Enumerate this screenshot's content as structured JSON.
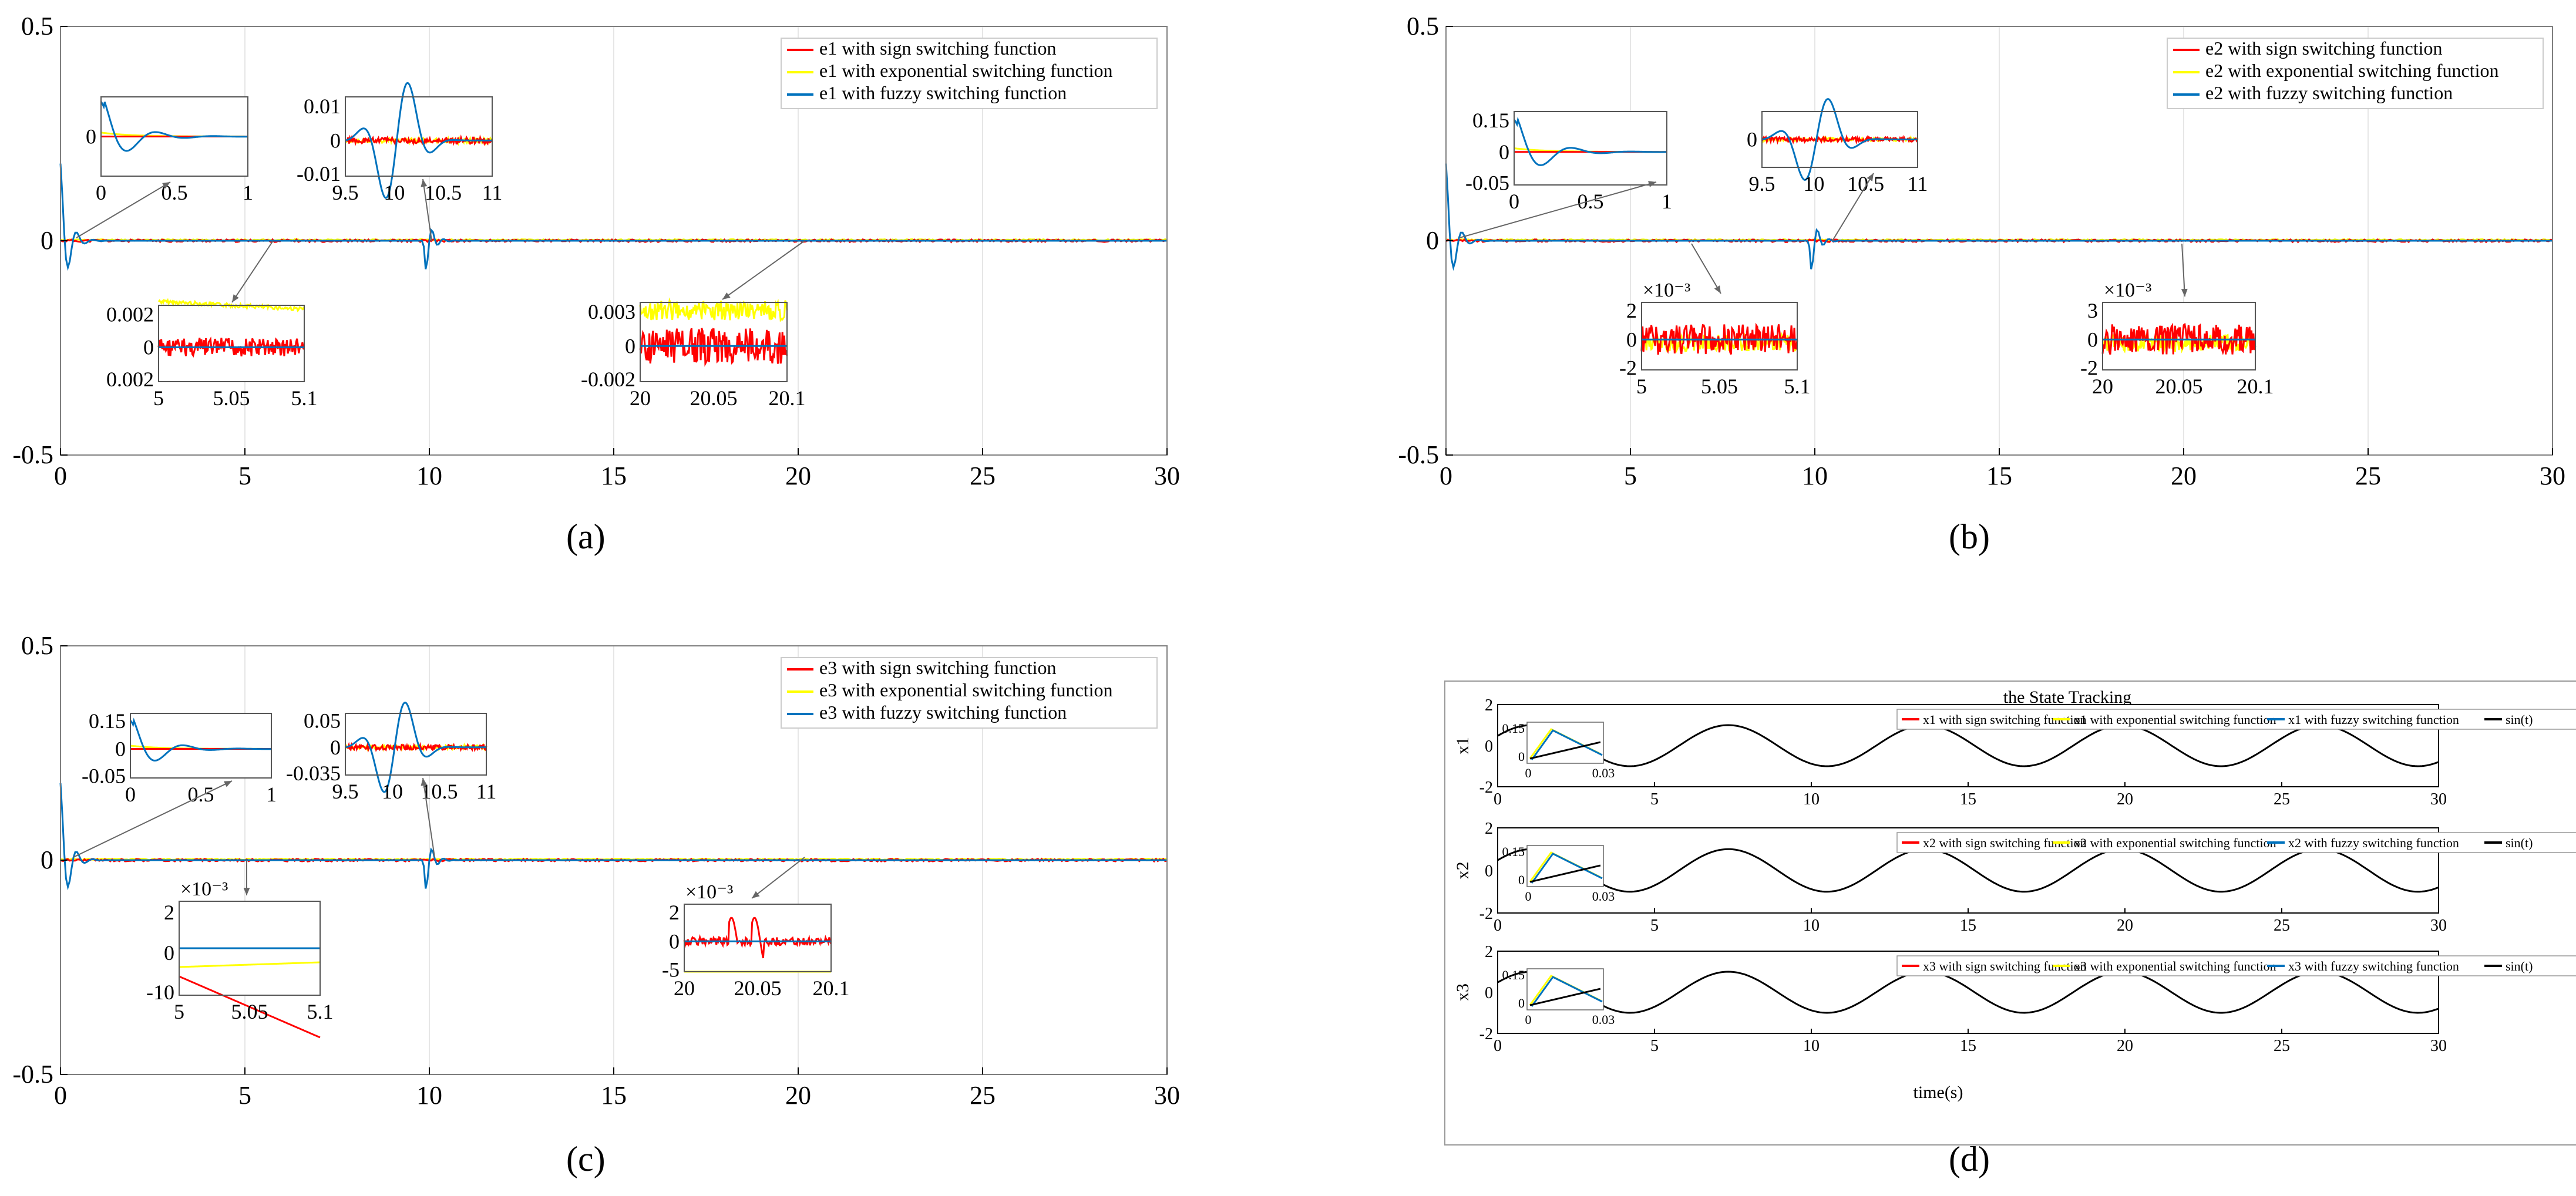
{
  "chart_data": [
    {
      "id": "a",
      "type": "line",
      "panel_label": "(a)",
      "title": "",
      "xlabel": "",
      "ylabel": "",
      "xlim": [
        0,
        30
      ],
      "ylim": [
        -0.5,
        0.5
      ],
      "xticks": [
        "0",
        "5",
        "10",
        "15",
        "20",
        "25",
        "30"
      ],
      "yticks": [
        "-0.5",
        "0",
        "0.5"
      ],
      "legend": [
        "e1 with sign switching function",
        "e1 with exponential switching function",
        "e1 with fuzzy switching function"
      ],
      "insets": [
        {
          "xticks": [
            "0",
            "0.5",
            "1"
          ],
          "yticks": [
            "0"
          ]
        },
        {
          "xticks": [
            "9.5",
            "10",
            "10.5",
            "11"
          ],
          "yticks": [
            "0.01",
            "0",
            "-0.01"
          ]
        },
        {
          "xticks": [
            "5",
            "5.05",
            "5.1"
          ],
          "yticks": [
            "0.002",
            "0",
            "0.002"
          ]
        },
        {
          "xticks": [
            "20",
            "20.05",
            "20.1"
          ],
          "yticks": [
            "0.003",
            "0",
            "-0.002"
          ]
        }
      ]
    },
    {
      "id": "b",
      "type": "line",
      "panel_label": "(b)",
      "title": "",
      "xlabel": "",
      "ylabel": "",
      "xlim": [
        0,
        30
      ],
      "ylim": [
        -0.5,
        0.5
      ],
      "xticks": [
        "0",
        "5",
        "10",
        "15",
        "20",
        "25",
        "30"
      ],
      "yticks": [
        "-0.5",
        "0",
        "0.5"
      ],
      "legend": [
        "e2 with sign switching function",
        "e2 with exponential switching function",
        "e2 with fuzzy switching function"
      ],
      "insets": [
        {
          "xticks": [
            "0",
            "0.5",
            "1"
          ],
          "yticks": [
            "0.15",
            "0",
            "-0.05"
          ]
        },
        {
          "xticks": [
            "9.5",
            "10",
            "10.5",
            "11"
          ],
          "yticks": [
            "0"
          ]
        },
        {
          "xticks": [
            "5",
            "5.05",
            "5.1"
          ],
          "yticks": [
            "2",
            "0",
            "-2"
          ],
          "exp": "×10⁻³"
        },
        {
          "xticks": [
            "20",
            "20.05",
            "20.1"
          ],
          "yticks": [
            "3",
            "0",
            "-2"
          ],
          "exp": "×10⁻³"
        }
      ]
    },
    {
      "id": "c",
      "type": "line",
      "panel_label": "(c)",
      "title": "",
      "xlabel": "",
      "ylabel": "",
      "xlim": [
        0,
        30
      ],
      "ylim": [
        -0.5,
        0.5
      ],
      "xticks": [
        "0",
        "5",
        "10",
        "15",
        "20",
        "25",
        "30"
      ],
      "yticks": [
        "-0.5",
        "0",
        "0.5"
      ],
      "legend": [
        "e3 with sign switching function",
        "e3 with exponential switching function",
        "e3 with fuzzy switching function"
      ],
      "insets": [
        {
          "xticks": [
            "0",
            "0.5",
            "1"
          ],
          "yticks": [
            "0.15",
            "0",
            "-0.05"
          ]
        },
        {
          "xticks": [
            "9.5",
            "10",
            "10.5",
            "11"
          ],
          "yticks": [
            "0.05",
            "0",
            "-0.035"
          ]
        },
        {
          "xticks": [
            "5",
            "5.05",
            "5.1"
          ],
          "yticks": [
            "2",
            "0",
            "-10"
          ],
          "exp": "×10⁻³"
        },
        {
          "xticks": [
            "20",
            "20.05",
            "20.1"
          ],
          "yticks": [
            "2",
            "0",
            "-5"
          ],
          "exp": "×10⁻³"
        }
      ]
    },
    {
      "id": "d",
      "type": "line",
      "panel_label": "(d)",
      "title": "the State Tracking",
      "xlabel": "time(s)",
      "xlim": [
        0,
        30
      ],
      "xticks": [
        "0",
        "5",
        "10",
        "15",
        "20",
        "25",
        "30"
      ],
      "reference": "sin(t)",
      "subplots": [
        {
          "ylabel": "x1",
          "ylim": [
            -2,
            2
          ],
          "yticks": [
            "2",
            "0",
            "-2"
          ],
          "legend": [
            "x1 with sign switching function",
            "x1 with exponential switching function",
            "x1 with fuzzy switching function",
            "sin(t)"
          ],
          "inset": {
            "xticks": [
              "0",
              "0.03"
            ],
            "yticks": [
              "0.15",
              "0"
            ]
          }
        },
        {
          "ylabel": "x2",
          "ylim": [
            -2,
            2
          ],
          "yticks": [
            "2",
            "0",
            "-2"
          ],
          "legend": [
            "x2 with sign switching function",
            "x2 with exponential switching function",
            "x2 with fuzzy switching function",
            "sin(t)"
          ],
          "inset": {
            "xticks": [
              "0",
              "0.03"
            ],
            "yticks": [
              "0.15",
              "0"
            ]
          }
        },
        {
          "ylabel": "x3",
          "ylim": [
            -2,
            2
          ],
          "yticks": [
            "2",
            "0",
            "-2"
          ],
          "legend": [
            "x3 with sign switching function",
            "x3 with exponential switching function",
            "x3 with fuzzy switching function",
            "sin(t)"
          ],
          "inset": {
            "xticks": [
              "0",
              "0.03"
            ],
            "yticks": [
              "0.15",
              "0"
            ]
          }
        }
      ]
    }
  ],
  "colors": {
    "sign": "#ff0000",
    "exponential": "#ffff00",
    "fuzzy": "#0072bd",
    "reference": "#000000",
    "grid": "#e6e6e6",
    "axis": "#000000"
  }
}
